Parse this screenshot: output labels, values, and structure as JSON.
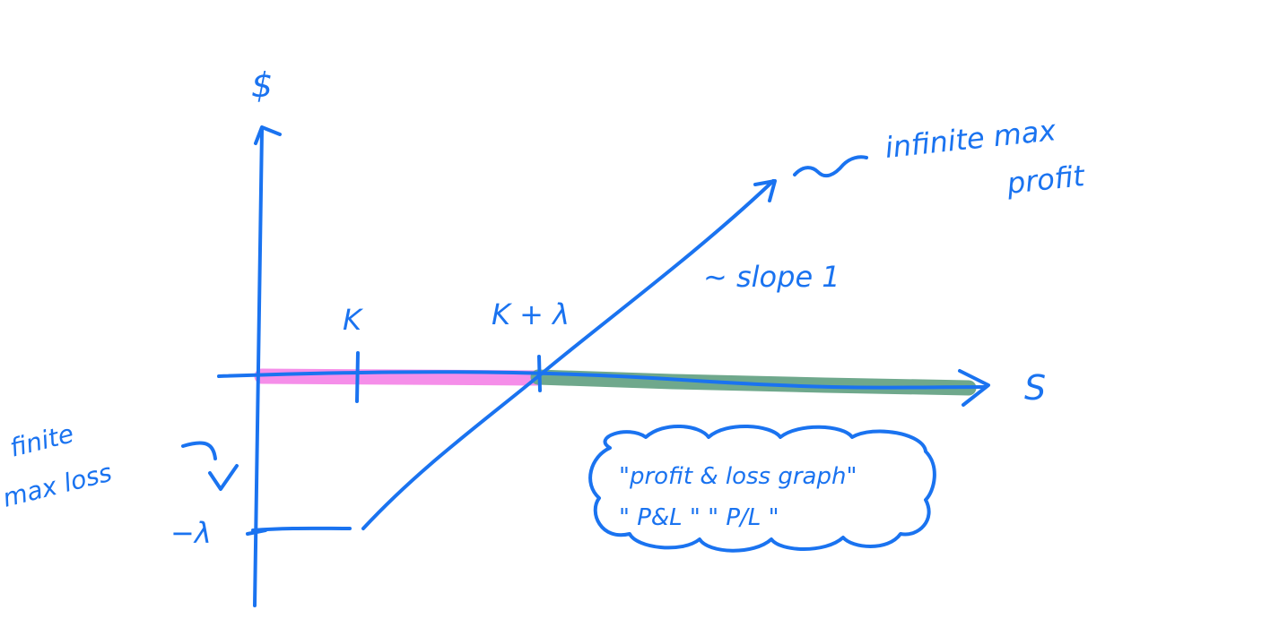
{
  "colors": {
    "ink": "#1a73f0",
    "loss_highlight": "#f58ee9",
    "profit_highlight": "#6fa88c"
  },
  "labels": {
    "y_axis": "$",
    "x_axis": "S",
    "strike": "K",
    "breakeven": "K + λ",
    "premium": "−λ",
    "slope": "~ slope 1",
    "max_profit": [
      "infinite max",
      "profit"
    ],
    "max_loss": [
      "finite",
      "max loss"
    ],
    "note": [
      "\"profit & loss graph\"",
      "\" P&L \"   \" P/L \""
    ]
  },
  "chart_data": {
    "type": "line",
    "x": [
      "0",
      "K",
      "K + λ"
    ],
    "y": [
      "−λ",
      "−λ",
      "0"
    ],
    "xlabel": "S",
    "ylabel": "$"
  }
}
